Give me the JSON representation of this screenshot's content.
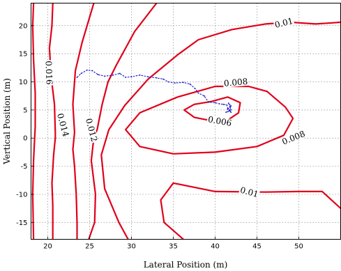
{
  "chart_data": {
    "type": "contour",
    "xlabel": "Lateral Position (m)",
    "ylabel": "Vertical Position (m)",
    "xlim": [
      18,
      55
    ],
    "ylim": [
      -18,
      24
    ],
    "xticks": [
      20,
      25,
      30,
      35,
      40,
      45,
      50
    ],
    "yticks": [
      -15,
      -10,
      -5,
      0,
      5,
      10,
      15,
      20
    ],
    "grid": true,
    "contour_color": "#e0001a",
    "path_color": "#1515c8",
    "contours": [
      {
        "label": "0.006",
        "points": [
          [
            39.5,
            6.5
          ],
          [
            41.5,
            7.3
          ],
          [
            43,
            6.3
          ],
          [
            42.8,
            4.5
          ],
          [
            41.5,
            3.2
          ],
          [
            39.5,
            3.1
          ],
          [
            37.5,
            3.7
          ],
          [
            36.3,
            5
          ],
          [
            37.5,
            6
          ],
          [
            39.5,
            6.5
          ]
        ]
      },
      {
        "label": "0.008",
        "points": [
          [
            35.5,
            7.3
          ],
          [
            40,
            9.2
          ],
          [
            44,
            9.2
          ],
          [
            46.2,
            8.3
          ],
          [
            48.4,
            5.5
          ],
          [
            49.3,
            3.5
          ],
          [
            48.2,
            0.5
          ],
          [
            45,
            -1.5
          ],
          [
            40,
            -2.5
          ],
          [
            35,
            -2.8
          ],
          [
            31,
            -1.5
          ],
          [
            29.3,
            1.5
          ],
          [
            31,
            4.5
          ],
          [
            35.5,
            7.3
          ]
        ]
      },
      {
        "label": "0.01",
        "points": [
          [
            52,
            20.3
          ],
          [
            54,
            20.5
          ],
          [
            55,
            20.6
          ]
        ]
      },
      {
        "label": "0.01",
        "points": [
          [
            29.6,
            -18
          ],
          [
            28.5,
            -15
          ],
          [
            26.8,
            -9
          ],
          [
            26.4,
            -3
          ],
          [
            27.3,
            1.5
          ],
          [
            29.2,
            5.8
          ],
          [
            32,
            10.5
          ],
          [
            35.5,
            14.8
          ],
          [
            38,
            17.5
          ],
          [
            42,
            19.3
          ],
          [
            46,
            20.3
          ],
          [
            49,
            20.6
          ],
          [
            52,
            20.3
          ]
        ]
      },
      {
        "label": "0.01",
        "points": [
          [
            55,
            -12.5
          ],
          [
            52.8,
            -9.5
          ],
          [
            50,
            -9.5
          ],
          [
            46,
            -9.6
          ],
          [
            40,
            -9.5
          ],
          [
            35,
            -8
          ],
          [
            33.5,
            -11
          ],
          [
            33.9,
            -15
          ],
          [
            36.2,
            -18
          ]
        ]
      },
      {
        "label": "0.012",
        "points": [
          [
            33,
            24
          ],
          [
            30.4,
            19
          ],
          [
            28.2,
            13
          ],
          [
            27.2,
            10
          ],
          [
            26.5,
            6
          ],
          [
            25.9,
            1.5
          ],
          [
            25.5,
            0
          ],
          [
            25.2,
            -4
          ],
          [
            25.7,
            -10
          ],
          [
            25.6,
            -15
          ],
          [
            24.9,
            -18
          ]
        ]
      },
      {
        "label": "0.014",
        "points": [
          [
            25.5,
            24
          ],
          [
            24.1,
            17
          ],
          [
            23.3,
            12
          ],
          [
            23,
            6
          ],
          [
            23.2,
            1
          ],
          [
            23,
            -2
          ],
          [
            23.2,
            -5
          ],
          [
            23.4,
            -10
          ],
          [
            23.5,
            -15
          ],
          [
            23.5,
            -18
          ]
        ]
      },
      {
        "label": "0.016",
        "points": [
          [
            20.6,
            24
          ],
          [
            20.5,
            20
          ],
          [
            20.2,
            16
          ],
          [
            20.4,
            11
          ],
          [
            20.8,
            6
          ],
          [
            20.9,
            1
          ],
          [
            20.9,
            0
          ],
          [
            20.7,
            -3
          ],
          [
            20.5,
            -8
          ],
          [
            20.6,
            -12
          ],
          [
            20.6,
            -18
          ]
        ]
      },
      {
        "label": "",
        "points": [
          [
            18.3,
            24
          ],
          [
            18.2,
            20
          ],
          [
            18.3,
            14
          ],
          [
            18.5,
            8
          ],
          [
            18.5,
            2
          ],
          [
            18.3,
            -4
          ],
          [
            18.2,
            -10
          ],
          [
            18.3,
            -18
          ]
        ]
      }
    ],
    "path": [
      [
        23.5,
        10.8
      ],
      [
        24,
        11.5
      ],
      [
        24.7,
        12.1
      ],
      [
        25.3,
        12
      ],
      [
        26,
        11.3
      ],
      [
        26.8,
        11
      ],
      [
        27.8,
        11.2
      ],
      [
        28.6,
        11.5
      ],
      [
        29.3,
        10.8
      ],
      [
        30,
        10.9
      ],
      [
        31,
        11.2
      ],
      [
        32,
        10.9
      ],
      [
        33,
        10.7
      ],
      [
        33.8,
        10.5
      ],
      [
        34.4,
        10
      ],
      [
        35.2,
        9.8
      ],
      [
        36.2,
        9.9
      ],
      [
        37,
        9.6
      ],
      [
        37.6,
        8.8
      ],
      [
        38,
        8
      ],
      [
        38.7,
        7.5
      ],
      [
        39.2,
        6.4
      ],
      [
        40,
        6.3
      ],
      [
        40.5,
        6.1
      ],
      [
        41,
        6
      ],
      [
        41.4,
        5.9
      ],
      [
        41.5,
        5.3
      ],
      [
        41.8,
        5.5
      ],
      [
        41.7,
        4.9
      ],
      [
        41.9,
        4.6
      ],
      [
        41.5,
        5.1
      ],
      [
        41.9,
        5.7
      ],
      [
        41.6,
        6.2
      ],
      [
        41.9,
        5
      ],
      [
        41.3,
        4.6
      ],
      [
        41.8,
        4.8
      ]
    ]
  }
}
